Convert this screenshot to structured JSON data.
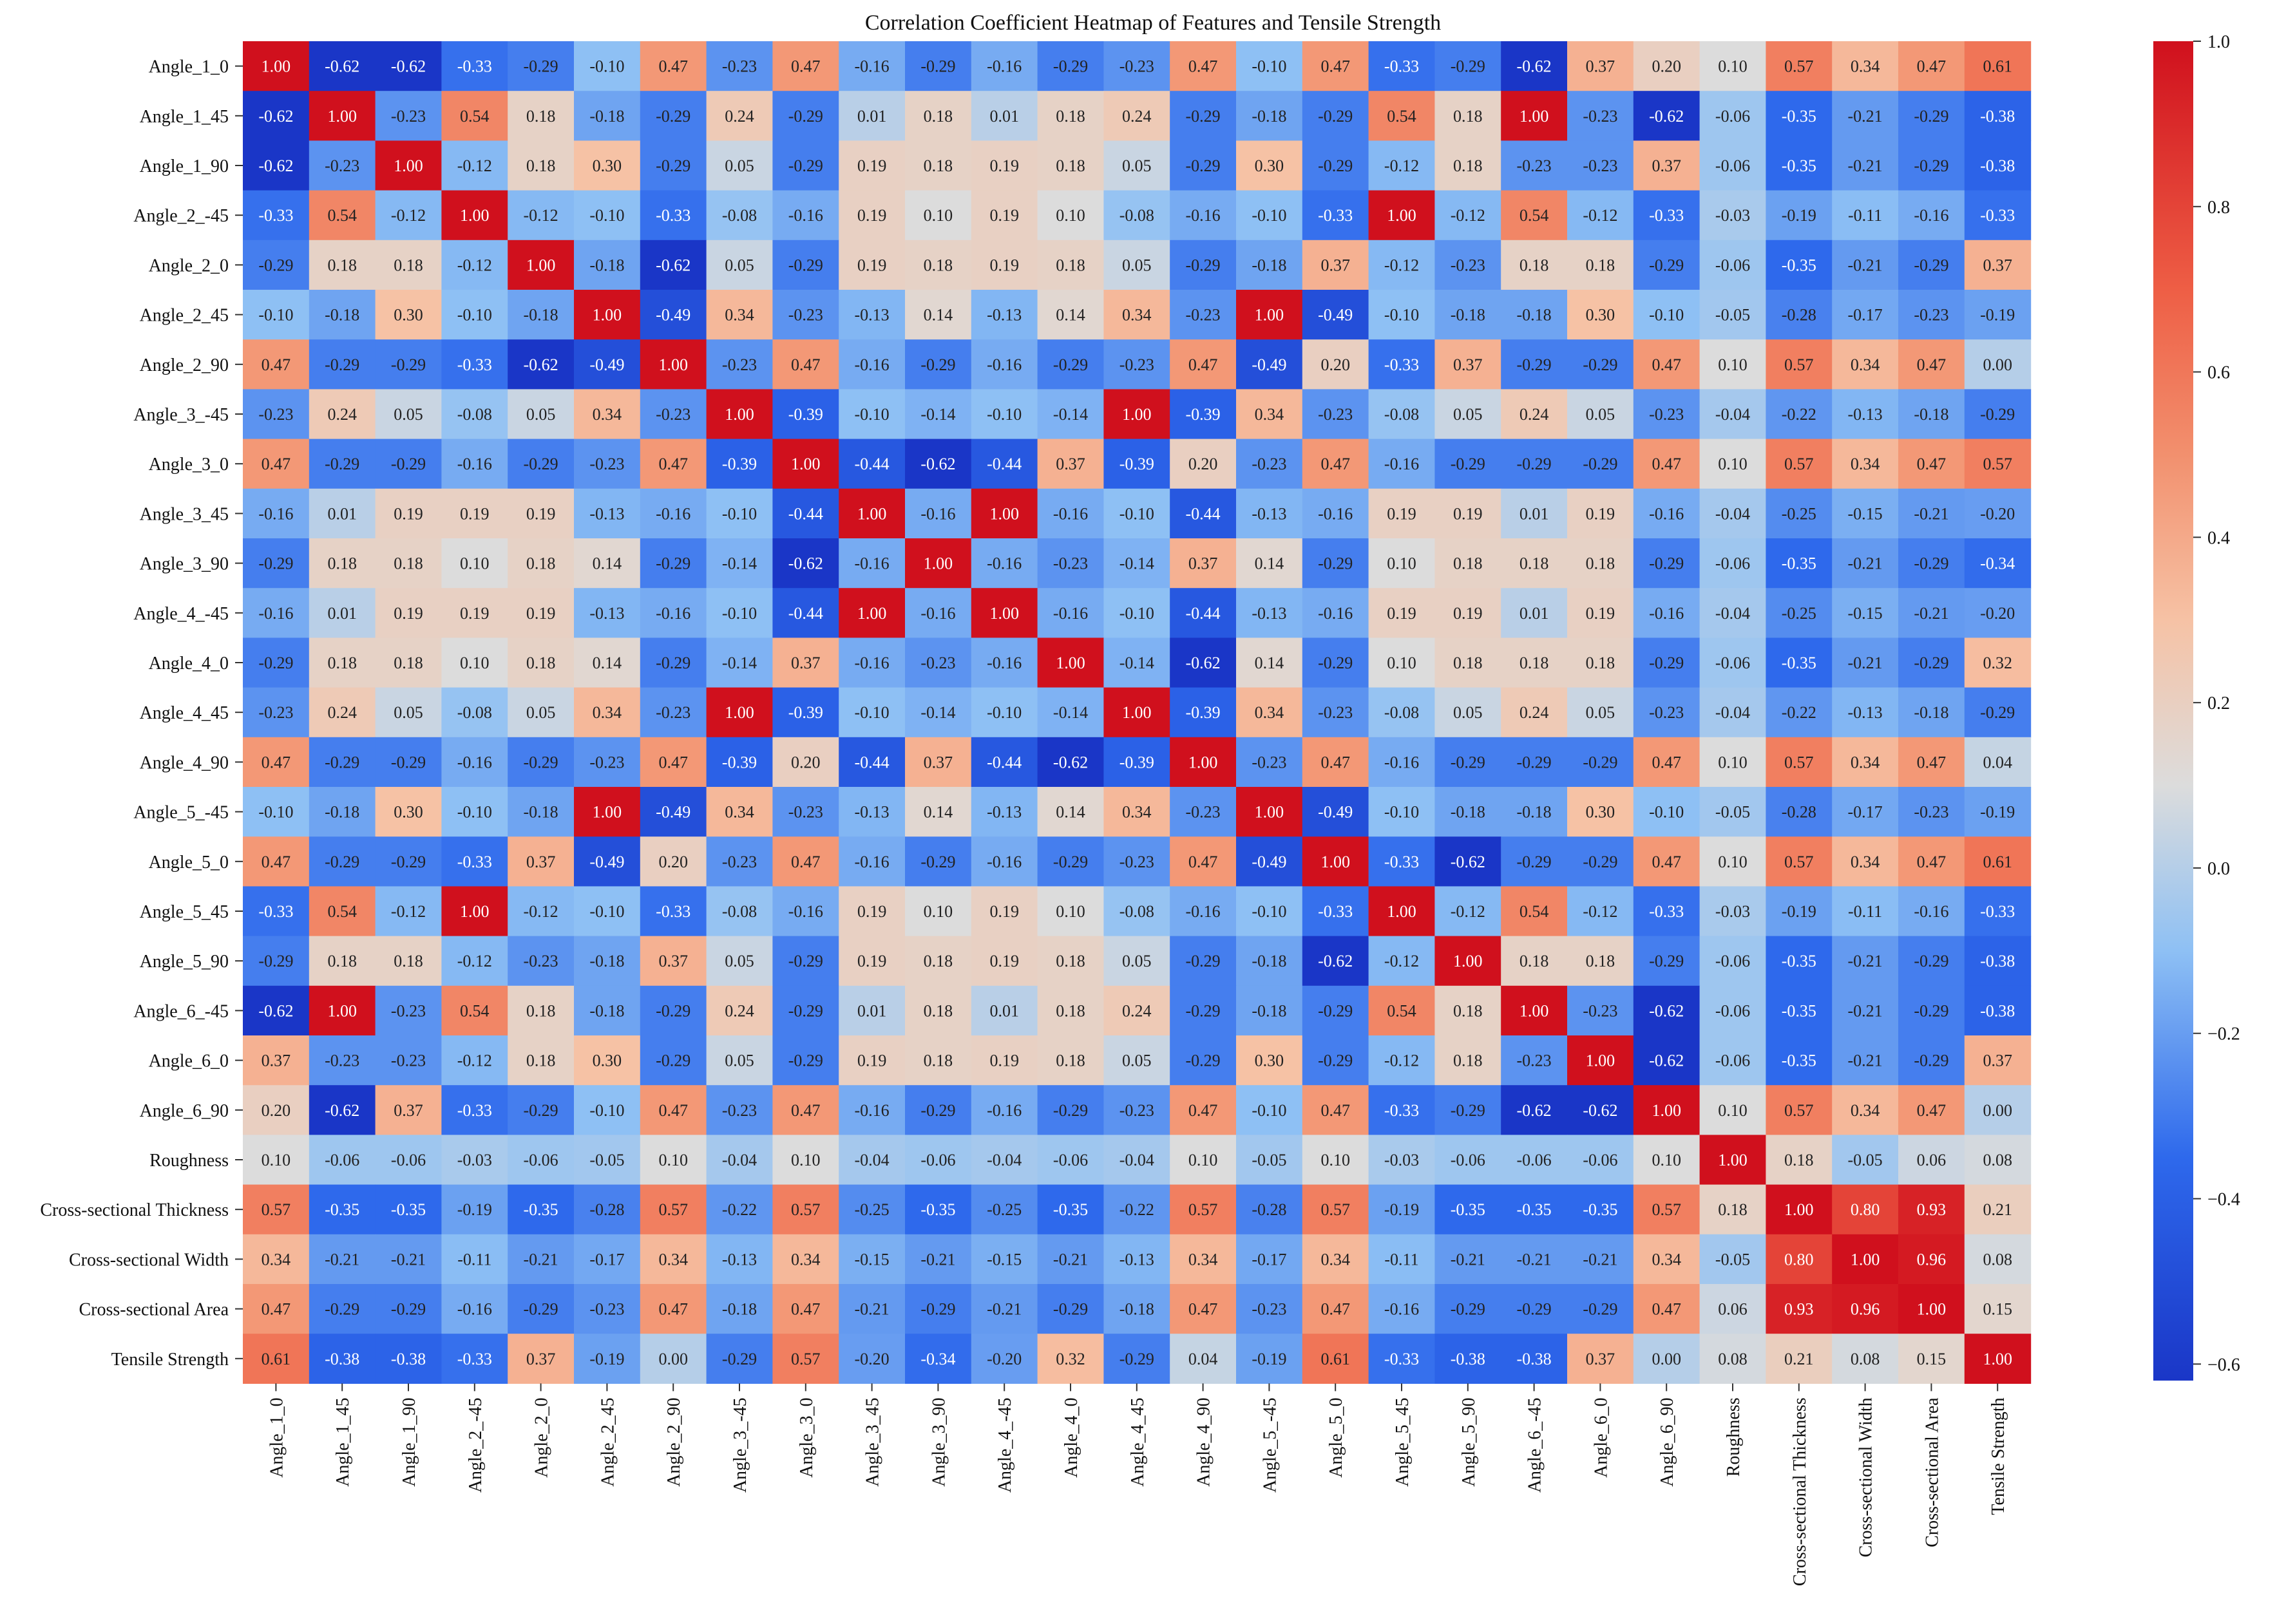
{
  "chart_data": {
    "type": "heatmap",
    "title": "Correlation Coefficient Heatmap of Features and Tensile Strength",
    "labels": [
      "Angle_1_0",
      "Angle_1_45",
      "Angle_1_90",
      "Angle_2_-45",
      "Angle_2_0",
      "Angle_2_45",
      "Angle_2_90",
      "Angle_3_-45",
      "Angle_3_0",
      "Angle_3_45",
      "Angle_3_90",
      "Angle_4_-45",
      "Angle_4_0",
      "Angle_4_45",
      "Angle_4_90",
      "Angle_5_-45",
      "Angle_5_0",
      "Angle_5_45",
      "Angle_5_90",
      "Angle_6_-45",
      "Angle_6_0",
      "Angle_6_90",
      "Roughness",
      "Cross-sectional Thickness",
      "Cross-sectional Width",
      "Cross-sectional Area",
      "Tensile Strength"
    ],
    "matrix": [
      [
        1.0,
        -0.62,
        -0.62,
        -0.33,
        -0.29,
        -0.1,
        0.47,
        -0.23,
        0.47,
        -0.16,
        -0.29,
        -0.16,
        -0.29,
        -0.23,
        0.47,
        -0.1,
        0.47,
        -0.33,
        -0.29,
        -0.62,
        0.37,
        0.2,
        0.1,
        0.57,
        0.34,
        0.47,
        0.61
      ],
      [
        -0.62,
        1.0,
        -0.23,
        0.54,
        0.18,
        -0.18,
        -0.29,
        0.24,
        -0.29,
        0.01,
        0.18,
        0.01,
        0.18,
        0.24,
        -0.29,
        -0.18,
        -0.29,
        0.54,
        0.18,
        1.0,
        -0.23,
        -0.62,
        -0.06,
        -0.35,
        -0.21,
        -0.29,
        -0.38
      ],
      [
        -0.62,
        -0.23,
        1.0,
        -0.12,
        0.18,
        0.3,
        -0.29,
        0.05,
        -0.29,
        0.19,
        0.18,
        0.19,
        0.18,
        0.05,
        -0.29,
        0.3,
        -0.29,
        -0.12,
        0.18,
        -0.23,
        -0.23,
        0.37,
        -0.06,
        -0.35,
        -0.21,
        -0.29,
        -0.38
      ],
      [
        -0.33,
        0.54,
        -0.12,
        1.0,
        -0.12,
        -0.1,
        -0.33,
        -0.08,
        -0.16,
        0.19,
        0.1,
        0.19,
        0.1,
        -0.08,
        -0.16,
        -0.1,
        -0.33,
        1.0,
        -0.12,
        0.54,
        -0.12,
        -0.33,
        -0.03,
        -0.19,
        -0.11,
        -0.16,
        -0.33
      ],
      [
        -0.29,
        0.18,
        0.18,
        -0.12,
        1.0,
        -0.18,
        -0.62,
        0.05,
        -0.29,
        0.19,
        0.18,
        0.19,
        0.18,
        0.05,
        -0.29,
        -0.18,
        0.37,
        -0.12,
        -0.23,
        0.18,
        0.18,
        -0.29,
        -0.06,
        -0.35,
        -0.21,
        -0.29,
        0.37
      ],
      [
        -0.1,
        -0.18,
        0.3,
        -0.1,
        -0.18,
        1.0,
        -0.49,
        0.34,
        -0.23,
        -0.13,
        0.14,
        -0.13,
        0.14,
        0.34,
        -0.23,
        1.0,
        -0.49,
        -0.1,
        -0.18,
        -0.18,
        0.3,
        -0.1,
        -0.05,
        -0.28,
        -0.17,
        -0.23,
        -0.19
      ],
      [
        0.47,
        -0.29,
        -0.29,
        -0.33,
        -0.62,
        -0.49,
        1.0,
        -0.23,
        0.47,
        -0.16,
        -0.29,
        -0.16,
        -0.29,
        -0.23,
        0.47,
        -0.49,
        0.2,
        -0.33,
        0.37,
        -0.29,
        -0.29,
        0.47,
        0.1,
        0.57,
        0.34,
        0.47,
        0.0
      ],
      [
        -0.23,
        0.24,
        0.05,
        -0.08,
        0.05,
        0.34,
        -0.23,
        1.0,
        -0.39,
        -0.1,
        -0.14,
        -0.1,
        -0.14,
        1.0,
        -0.39,
        0.34,
        -0.23,
        -0.08,
        0.05,
        0.24,
        0.05,
        -0.23,
        -0.04,
        -0.22,
        -0.13,
        -0.18,
        -0.29
      ],
      [
        0.47,
        -0.29,
        -0.29,
        -0.16,
        -0.29,
        -0.23,
        0.47,
        -0.39,
        1.0,
        -0.44,
        -0.62,
        -0.44,
        0.37,
        -0.39,
        0.2,
        -0.23,
        0.47,
        -0.16,
        -0.29,
        -0.29,
        -0.29,
        0.47,
        0.1,
        0.57,
        0.34,
        0.47,
        0.57
      ],
      [
        -0.16,
        0.01,
        0.19,
        0.19,
        0.19,
        -0.13,
        -0.16,
        -0.1,
        -0.44,
        1.0,
        -0.16,
        1.0,
        -0.16,
        -0.1,
        -0.44,
        -0.13,
        -0.16,
        0.19,
        0.19,
        0.01,
        0.19,
        -0.16,
        -0.04,
        -0.25,
        -0.15,
        -0.21,
        -0.2
      ],
      [
        -0.29,
        0.18,
        0.18,
        0.1,
        0.18,
        0.14,
        -0.29,
        -0.14,
        -0.62,
        -0.16,
        1.0,
        -0.16,
        -0.23,
        -0.14,
        0.37,
        0.14,
        -0.29,
        0.1,
        0.18,
        0.18,
        0.18,
        -0.29,
        -0.06,
        -0.35,
        -0.21,
        -0.29,
        -0.34
      ],
      [
        -0.16,
        0.01,
        0.19,
        0.19,
        0.19,
        -0.13,
        -0.16,
        -0.1,
        -0.44,
        1.0,
        -0.16,
        1.0,
        -0.16,
        -0.1,
        -0.44,
        -0.13,
        -0.16,
        0.19,
        0.19,
        0.01,
        0.19,
        -0.16,
        -0.04,
        -0.25,
        -0.15,
        -0.21,
        -0.2
      ],
      [
        -0.29,
        0.18,
        0.18,
        0.1,
        0.18,
        0.14,
        -0.29,
        -0.14,
        0.37,
        -0.16,
        -0.23,
        -0.16,
        1.0,
        -0.14,
        -0.62,
        0.14,
        -0.29,
        0.1,
        0.18,
        0.18,
        0.18,
        -0.29,
        -0.06,
        -0.35,
        -0.21,
        -0.29,
        0.32
      ],
      [
        -0.23,
        0.24,
        0.05,
        -0.08,
        0.05,
        0.34,
        -0.23,
        1.0,
        -0.39,
        -0.1,
        -0.14,
        -0.1,
        -0.14,
        1.0,
        -0.39,
        0.34,
        -0.23,
        -0.08,
        0.05,
        0.24,
        0.05,
        -0.23,
        -0.04,
        -0.22,
        -0.13,
        -0.18,
        -0.29
      ],
      [
        0.47,
        -0.29,
        -0.29,
        -0.16,
        -0.29,
        -0.23,
        0.47,
        -0.39,
        0.2,
        -0.44,
        0.37,
        -0.44,
        -0.62,
        -0.39,
        1.0,
        -0.23,
        0.47,
        -0.16,
        -0.29,
        -0.29,
        -0.29,
        0.47,
        0.1,
        0.57,
        0.34,
        0.47,
        0.04
      ],
      [
        -0.1,
        -0.18,
        0.3,
        -0.1,
        -0.18,
        1.0,
        -0.49,
        0.34,
        -0.23,
        -0.13,
        0.14,
        -0.13,
        0.14,
        0.34,
        -0.23,
        1.0,
        -0.49,
        -0.1,
        -0.18,
        -0.18,
        0.3,
        -0.1,
        -0.05,
        -0.28,
        -0.17,
        -0.23,
        -0.19
      ],
      [
        0.47,
        -0.29,
        -0.29,
        -0.33,
        0.37,
        -0.49,
        0.2,
        -0.23,
        0.47,
        -0.16,
        -0.29,
        -0.16,
        -0.29,
        -0.23,
        0.47,
        -0.49,
        1.0,
        -0.33,
        -0.62,
        -0.29,
        -0.29,
        0.47,
        0.1,
        0.57,
        0.34,
        0.47,
        0.61
      ],
      [
        -0.33,
        0.54,
        -0.12,
        1.0,
        -0.12,
        -0.1,
        -0.33,
        -0.08,
        -0.16,
        0.19,
        0.1,
        0.19,
        0.1,
        -0.08,
        -0.16,
        -0.1,
        -0.33,
        1.0,
        -0.12,
        0.54,
        -0.12,
        -0.33,
        -0.03,
        -0.19,
        -0.11,
        -0.16,
        -0.33
      ],
      [
        -0.29,
        0.18,
        0.18,
        -0.12,
        -0.23,
        -0.18,
        0.37,
        0.05,
        -0.29,
        0.19,
        0.18,
        0.19,
        0.18,
        0.05,
        -0.29,
        -0.18,
        -0.62,
        -0.12,
        1.0,
        0.18,
        0.18,
        -0.29,
        -0.06,
        -0.35,
        -0.21,
        -0.29,
        -0.38
      ],
      [
        -0.62,
        1.0,
        -0.23,
        0.54,
        0.18,
        -0.18,
        -0.29,
        0.24,
        -0.29,
        0.01,
        0.18,
        0.01,
        0.18,
        0.24,
        -0.29,
        -0.18,
        -0.29,
        0.54,
        0.18,
        1.0,
        -0.23,
        -0.62,
        -0.06,
        -0.35,
        -0.21,
        -0.29,
        -0.38
      ],
      [
        0.37,
        -0.23,
        -0.23,
        -0.12,
        0.18,
        0.3,
        -0.29,
        0.05,
        -0.29,
        0.19,
        0.18,
        0.19,
        0.18,
        0.05,
        -0.29,
        0.3,
        -0.29,
        -0.12,
        0.18,
        -0.23,
        1.0,
        -0.62,
        -0.06,
        -0.35,
        -0.21,
        -0.29,
        0.37
      ],
      [
        0.2,
        -0.62,
        0.37,
        -0.33,
        -0.29,
        -0.1,
        0.47,
        -0.23,
        0.47,
        -0.16,
        -0.29,
        -0.16,
        -0.29,
        -0.23,
        0.47,
        -0.1,
        0.47,
        -0.33,
        -0.29,
        -0.62,
        -0.62,
        1.0,
        0.1,
        0.57,
        0.34,
        0.47,
        0.0
      ],
      [
        0.1,
        -0.06,
        -0.06,
        -0.03,
        -0.06,
        -0.05,
        0.1,
        -0.04,
        0.1,
        -0.04,
        -0.06,
        -0.04,
        -0.06,
        -0.04,
        0.1,
        -0.05,
        0.1,
        -0.03,
        -0.06,
        -0.06,
        -0.06,
        0.1,
        1.0,
        0.18,
        -0.05,
        0.06,
        0.08
      ],
      [
        0.57,
        -0.35,
        -0.35,
        -0.19,
        -0.35,
        -0.28,
        0.57,
        -0.22,
        0.57,
        -0.25,
        -0.35,
        -0.25,
        -0.35,
        -0.22,
        0.57,
        -0.28,
        0.57,
        -0.19,
        -0.35,
        -0.35,
        -0.35,
        0.57,
        0.18,
        1.0,
        0.8,
        0.93,
        0.21
      ],
      [
        0.34,
        -0.21,
        -0.21,
        -0.11,
        -0.21,
        -0.17,
        0.34,
        -0.13,
        0.34,
        -0.15,
        -0.21,
        -0.15,
        -0.21,
        -0.13,
        0.34,
        -0.17,
        0.34,
        -0.11,
        -0.21,
        -0.21,
        -0.21,
        0.34,
        -0.05,
        0.8,
        1.0,
        0.96,
        0.08
      ],
      [
        0.47,
        -0.29,
        -0.29,
        -0.16,
        -0.29,
        -0.23,
        0.47,
        -0.18,
        0.47,
        -0.21,
        -0.29,
        -0.21,
        -0.29,
        -0.18,
        0.47,
        -0.23,
        0.47,
        -0.16,
        -0.29,
        -0.29,
        -0.29,
        0.47,
        0.06,
        0.93,
        0.96,
        1.0,
        0.15
      ],
      [
        0.61,
        -0.38,
        -0.38,
        -0.33,
        0.37,
        -0.19,
        0.0,
        -0.29,
        0.57,
        -0.2,
        -0.34,
        -0.2,
        0.32,
        -0.29,
        0.04,
        -0.19,
        0.61,
        -0.33,
        -0.38,
        -0.38,
        0.37,
        0.0,
        0.08,
        0.21,
        0.08,
        0.15,
        1.0
      ]
    ],
    "colorscale": {
      "name": "coolwarm-style diverging (blue to red)",
      "vmin": -0.62,
      "vmax": 1.0,
      "stops": [
        {
          "value": -0.62,
          "color": "#1a36c7"
        },
        {
          "value": -0.35,
          "color": "#2e69ec"
        },
        {
          "value": -0.1,
          "color": "#8ec0f4"
        },
        {
          "value": 0.1,
          "color": "#dcdcdc"
        },
        {
          "value": 0.3,
          "color": "#f6c2a5"
        },
        {
          "value": 0.5,
          "color": "#f2906e"
        },
        {
          "value": 0.7,
          "color": "#ee5e45"
        },
        {
          "value": 1.0,
          "color": "#d0101d"
        }
      ],
      "ticks": [
        "1.0",
        "0.8",
        "0.6",
        "0.4",
        "0.2",
        "0.0",
        "−0.2",
        "−0.4",
        "−0.6"
      ],
      "tick_values": [
        1.0,
        0.8,
        0.6,
        0.4,
        0.2,
        0.0,
        -0.2,
        -0.4,
        -0.6
      ]
    },
    "xlabel": "",
    "ylabel": "",
    "annotations": "cell values shown with 2 decimals"
  }
}
